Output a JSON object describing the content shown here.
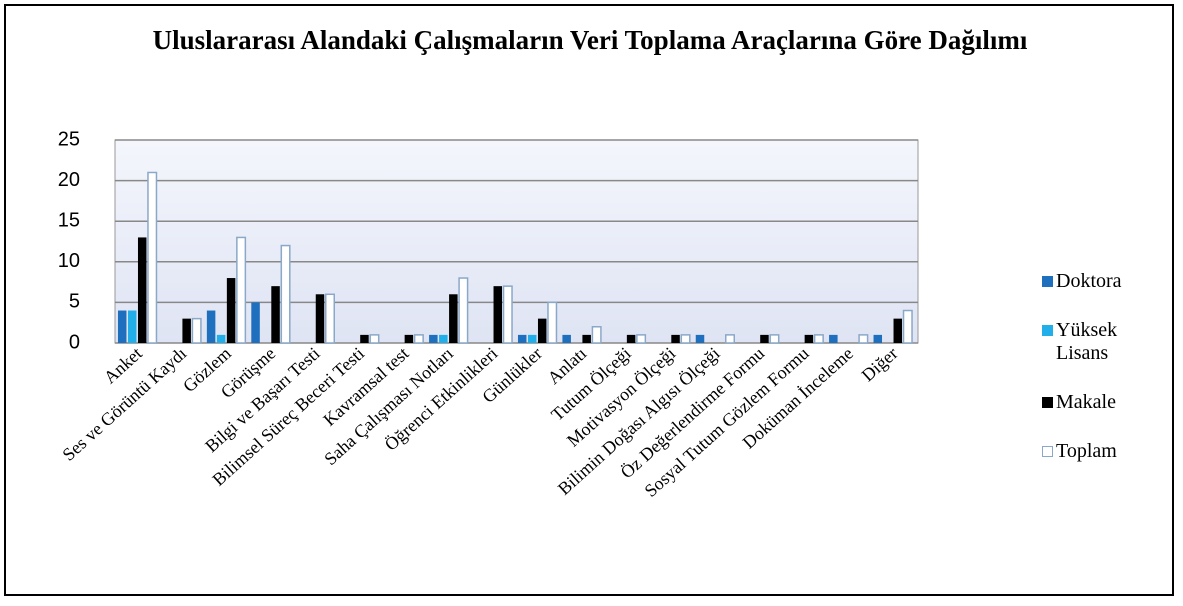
{
  "chart_data": {
    "type": "bar",
    "title": "Uluslararası Alandaki Çalışmaların Veri Toplama Araçlarına Göre Dağılımı",
    "categories": [
      "Anket",
      "Ses ve Görüntü Kaydı",
      "Gözlem",
      "Görüşme",
      "Bilgi ve Başarı Testi",
      "Bilimsel Süreç Beceri Testi",
      "Kavramsal test",
      "Saha Çalışması Notları",
      "Öğrenci Etkinlikleri",
      "Günlükler",
      "Anlatı",
      "Tutum Ölçeği",
      "Motivasyon Ölçeği",
      "Bilimin Doğası Algısı Ölçeği",
      "Öz Değerlendirme Formu",
      "Sosyal Tutum Gözlem Formu",
      "Doküman İnceleme",
      "Diğer"
    ],
    "series": [
      {
        "name": "Doktora",
        "color": "#1f6fbf",
        "values": [
          4,
          0,
          4,
          5,
          0,
          0,
          0,
          1,
          0,
          1,
          1,
          0,
          0,
          1,
          0,
          0,
          1,
          1
        ]
      },
      {
        "name": "Yüksek Lisans",
        "color": "#22aee8",
        "values": [
          4,
          0,
          1,
          0,
          0,
          0,
          0,
          1,
          0,
          1,
          0,
          0,
          0,
          0,
          0,
          0,
          0,
          0
        ]
      },
      {
        "name": "Makale",
        "color": "#000000",
        "values": [
          13,
          3,
          8,
          7,
          6,
          1,
          1,
          6,
          7,
          3,
          1,
          1,
          1,
          0,
          1,
          1,
          0,
          3
        ]
      },
      {
        "name": "Toplam",
        "color": "#ffffff",
        "values": [
          21,
          3,
          13,
          12,
          6,
          1,
          1,
          8,
          7,
          5,
          2,
          1,
          1,
          1,
          1,
          1,
          1,
          4
        ]
      }
    ],
    "ylim": [
      0,
      25
    ],
    "yticks": [
      0,
      5,
      10,
      15,
      20,
      25
    ],
    "grid": true,
    "legend": "right"
  }
}
